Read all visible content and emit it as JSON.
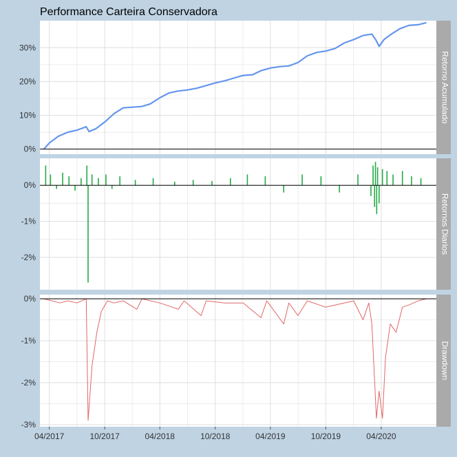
{
  "chart_data": {
    "title": "Performance Carteira Conservadora",
    "type": "line",
    "x_ticks": [
      "04/2017",
      "10/2017",
      "04/2018",
      "10/2018",
      "04/2019",
      "10/2019",
      "04/2020"
    ],
    "date_range": [
      "2017-03-01",
      "2020-09-30"
    ],
    "panels": [
      {
        "strip_label": "Retorno Acumulado",
        "type": "line",
        "color": "#6495ED",
        "ylim": [
          -1.5,
          38
        ],
        "y_ticks": [
          "0%",
          "10%",
          "20%",
          "30%"
        ],
        "y_tick_values": [
          0,
          10,
          20,
          30
        ],
        "zero_line": true,
        "points": [
          [
            "2017-03-14",
            0.0
          ],
          [
            "2017-04-01",
            1.8
          ],
          [
            "2017-05-01",
            3.8
          ],
          [
            "2017-06-01",
            5.0
          ],
          [
            "2017-07-01",
            5.6
          ],
          [
            "2017-08-01",
            6.6
          ],
          [
            "2017-08-10",
            5.2
          ],
          [
            "2017-09-01",
            6.0
          ],
          [
            "2017-10-01",
            8.0
          ],
          [
            "2017-11-01",
            10.5
          ],
          [
            "2017-12-01",
            12.2
          ],
          [
            "2018-01-01",
            12.4
          ],
          [
            "2018-02-01",
            12.6
          ],
          [
            "2018-03-01",
            13.4
          ],
          [
            "2018-04-01",
            15.2
          ],
          [
            "2018-05-01",
            16.6
          ],
          [
            "2018-06-01",
            17.2
          ],
          [
            "2018-07-01",
            17.5
          ],
          [
            "2018-08-01",
            18.0
          ],
          [
            "2018-09-01",
            18.8
          ],
          [
            "2018-10-01",
            19.6
          ],
          [
            "2018-11-01",
            20.2
          ],
          [
            "2018-12-01",
            21.0
          ],
          [
            "2019-01-01",
            21.8
          ],
          [
            "2019-02-01",
            22.0
          ],
          [
            "2019-03-01",
            23.2
          ],
          [
            "2019-04-01",
            24.0
          ],
          [
            "2019-05-01",
            24.4
          ],
          [
            "2019-06-01",
            24.6
          ],
          [
            "2019-07-01",
            25.6
          ],
          [
            "2019-08-01",
            27.6
          ],
          [
            "2019-09-01",
            28.6
          ],
          [
            "2019-10-01",
            29.0
          ],
          [
            "2019-11-01",
            29.8
          ],
          [
            "2019-12-01",
            31.4
          ],
          [
            "2020-01-01",
            32.4
          ],
          [
            "2020-02-01",
            33.6
          ],
          [
            "2020-03-01",
            34.0
          ],
          [
            "2020-03-15",
            32.2
          ],
          [
            "2020-03-25",
            30.4
          ],
          [
            "2020-04-10",
            32.4
          ],
          [
            "2020-05-01",
            33.8
          ],
          [
            "2020-06-01",
            35.6
          ],
          [
            "2020-07-01",
            36.6
          ],
          [
            "2020-08-01",
            36.8
          ],
          [
            "2020-08-28",
            37.4
          ]
        ]
      },
      {
        "strip_label": "Retornos Diarios",
        "type": "bar",
        "color": "#22AA44",
        "ylim": [
          -2.9,
          0.75
        ],
        "y_ticks": [
          "0%",
          "-1%",
          "-2%"
        ],
        "y_tick_values": [
          0,
          -1,
          -2
        ],
        "zero_line": true,
        "points": [
          [
            "2017-03-20",
            0.55
          ],
          [
            "2017-04-05",
            0.3
          ],
          [
            "2017-04-25",
            -0.1
          ],
          [
            "2017-05-15",
            0.35
          ],
          [
            "2017-06-05",
            0.25
          ],
          [
            "2017-06-25",
            -0.15
          ],
          [
            "2017-07-15",
            0.2
          ],
          [
            "2017-08-03",
            0.55
          ],
          [
            "2017-08-07",
            -2.7
          ],
          [
            "2017-08-20",
            0.3
          ],
          [
            "2017-09-10",
            0.2
          ],
          [
            "2017-10-05",
            0.3
          ],
          [
            "2017-10-25",
            -0.1
          ],
          [
            "2017-11-20",
            0.25
          ],
          [
            "2018-01-10",
            0.15
          ],
          [
            "2018-03-10",
            0.2
          ],
          [
            "2018-05-20",
            0.1
          ],
          [
            "2018-07-20",
            0.15
          ],
          [
            "2018-09-20",
            0.12
          ],
          [
            "2018-11-20",
            0.2
          ],
          [
            "2019-01-15",
            0.3
          ],
          [
            "2019-03-15",
            0.25
          ],
          [
            "2019-05-15",
            -0.2
          ],
          [
            "2019-07-15",
            0.3
          ],
          [
            "2019-09-15",
            0.25
          ],
          [
            "2019-11-15",
            -0.2
          ],
          [
            "2020-01-15",
            0.3
          ],
          [
            "2020-02-27",
            -0.3
          ],
          [
            "2020-03-05",
            0.55
          ],
          [
            "2020-03-10",
            -0.6
          ],
          [
            "2020-03-13",
            0.65
          ],
          [
            "2020-03-17",
            -0.8
          ],
          [
            "2020-03-20",
            0.5
          ],
          [
            "2020-03-25",
            -0.5
          ],
          [
            "2020-04-05",
            0.45
          ],
          [
            "2020-04-20",
            0.4
          ],
          [
            "2020-05-10",
            0.3
          ],
          [
            "2020-06-10",
            0.4
          ],
          [
            "2020-07-10",
            0.25
          ],
          [
            "2020-08-10",
            0.2
          ]
        ]
      },
      {
        "strip_label": "Drawdown",
        "type": "line",
        "color": "#E06666",
        "ylim": [
          -3.05,
          0.1
        ],
        "y_ticks": [
          "0%",
          "-1%",
          "-2%",
          "-3%"
        ],
        "y_tick_values": [
          0,
          -1,
          -2,
          -3
        ],
        "zero_line": true,
        "points": [
          [
            "2017-03-14",
            0.0
          ],
          [
            "2017-04-10",
            -0.05
          ],
          [
            "2017-05-05",
            -0.1
          ],
          [
            "2017-06-01",
            -0.05
          ],
          [
            "2017-07-01",
            -0.1
          ],
          [
            "2017-08-01",
            0.0
          ],
          [
            "2017-08-07",
            -2.9
          ],
          [
            "2017-08-20",
            -1.6
          ],
          [
            "2017-09-05",
            -0.8
          ],
          [
            "2017-09-20",
            -0.3
          ],
          [
            "2017-10-10",
            -0.05
          ],
          [
            "2017-11-01",
            -0.1
          ],
          [
            "2017-12-01",
            -0.05
          ],
          [
            "2018-01-15",
            -0.25
          ],
          [
            "2018-02-01",
            0.0
          ],
          [
            "2018-04-01",
            -0.1
          ],
          [
            "2018-06-01",
            -0.25
          ],
          [
            "2018-06-20",
            -0.05
          ],
          [
            "2018-08-15",
            -0.4
          ],
          [
            "2018-09-01",
            -0.05
          ],
          [
            "2018-11-01",
            -0.1
          ],
          [
            "2019-01-01",
            -0.1
          ],
          [
            "2019-03-01",
            -0.45
          ],
          [
            "2019-03-20",
            -0.05
          ],
          [
            "2019-05-15",
            -0.6
          ],
          [
            "2019-06-01",
            -0.1
          ],
          [
            "2019-07-01",
            -0.4
          ],
          [
            "2019-08-01",
            -0.05
          ],
          [
            "2019-10-01",
            -0.2
          ],
          [
            "2019-12-01",
            -0.1
          ],
          [
            "2020-01-01",
            -0.05
          ],
          [
            "2020-02-01",
            -0.5
          ],
          [
            "2020-02-20",
            -0.1
          ],
          [
            "2020-03-01",
            -0.6
          ],
          [
            "2020-03-16",
            -2.85
          ],
          [
            "2020-03-25",
            -2.2
          ],
          [
            "2020-04-05",
            -2.85
          ],
          [
            "2020-04-15",
            -1.4
          ],
          [
            "2020-05-01",
            -0.6
          ],
          [
            "2020-05-20",
            -0.8
          ],
          [
            "2020-06-10",
            -0.2
          ],
          [
            "2020-07-01",
            -0.15
          ],
          [
            "2020-08-01",
            -0.05
          ],
          [
            "2020-08-28",
            0.0
          ]
        ]
      }
    ]
  }
}
